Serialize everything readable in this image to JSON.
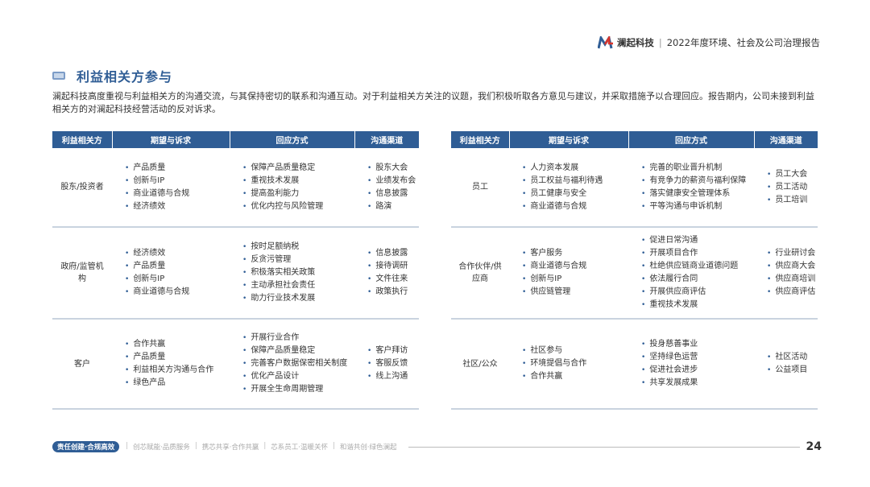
{
  "header": {
    "brand": "澜起科技",
    "report_title": "2022年度环境、社会及公司治理报告"
  },
  "section": {
    "title": "利益相关方参与",
    "intro": "澜起科技高度重视与利益相关方的沟通交流，与其保持密切的联系和沟通互动。对于利益相关方关注的议题，我们积极听取各方意见与建议，并采取措施予以合理回应。报告期内，公司未接到利益相关方的对澜起科技经营活动的反对诉求。"
  },
  "table_headers": [
    "利益相关方",
    "期望与诉求",
    "回应方式",
    "沟通渠道"
  ],
  "left_table": [
    {
      "stakeholder": "股东/投资者",
      "expectations": [
        "产品质量",
        "创新与IP",
        "商业道德与合规",
        "经济绩效"
      ],
      "responses": [
        "保障产品质量稳定",
        "重视技术发展",
        "提高盈利能力",
        "优化内控与风险管理"
      ],
      "channels": [
        "股东大会",
        "业绩发布会",
        "信息披露",
        "路演"
      ]
    },
    {
      "stakeholder": "政府/监管机构",
      "expectations": [
        "经济绩效",
        "产品质量",
        "创新与IP",
        "商业道德与合规"
      ],
      "responses": [
        "按时足额纳税",
        "反贪污管理",
        "积极落实相关政策",
        "主动承担社会责任",
        "助力行业技术发展"
      ],
      "channels": [
        "信息披露",
        "接待调研",
        "文件往来",
        "政策执行"
      ]
    },
    {
      "stakeholder": "客户",
      "expectations": [
        "合作共赢",
        "产品质量",
        "利益相关方沟通与合作",
        "绿色产品"
      ],
      "responses": [
        "开展行业合作",
        "保障产品质量稳定",
        "完善客户数据保密相关制度",
        "优化产品设计",
        "开展全生命周期管理"
      ],
      "channels": [
        "客户拜访",
        "客服反馈",
        "线上沟通"
      ]
    }
  ],
  "right_table": [
    {
      "stakeholder": "员工",
      "expectations": [
        "人力资本发展",
        "员工权益与福利待遇",
        "员工健康与安全",
        "商业道德与合规"
      ],
      "responses": [
        "完善的职业晋升机制",
        "有竞争力的薪资与福利保障",
        "落实健康安全管理体系",
        "平等沟通与申诉机制"
      ],
      "channels": [
        "员工大会",
        "员工活动",
        "员工培训"
      ]
    },
    {
      "stakeholder": "合作伙伴/供应商",
      "expectations": [
        "客户服务",
        "商业道德与合规",
        "创新与IP",
        "供应链管理"
      ],
      "responses": [
        "促进日常沟通",
        "开展项目合作",
        "杜绝供应链商业道德问题",
        "依法履行合同",
        "开展供应商评估",
        "重视技术发展"
      ],
      "channels": [
        "行业研讨会",
        "供应商大会",
        "供应商培训",
        "供应商评估"
      ]
    },
    {
      "stakeholder": "社区/公众",
      "expectations": [
        "社区参与",
        "环境提倡与合作",
        "合作共赢"
      ],
      "responses": [
        "投身慈善事业",
        "坚持绿色运营",
        "促进社会进步",
        "共享发展成果"
      ],
      "channels": [
        "社区活动",
        "公益项目"
      ]
    }
  ],
  "footer": {
    "active": "责任创建·合规高效",
    "items": [
      "创芯赋能·品质服务",
      "携芯共享·合作共赢",
      "芯系员工·温暖关怀",
      "和谐共创·绿色澜起"
    ],
    "page_number": "24"
  },
  "colors": {
    "accent": "#2f5d95",
    "logo_red": "#d9352b"
  }
}
